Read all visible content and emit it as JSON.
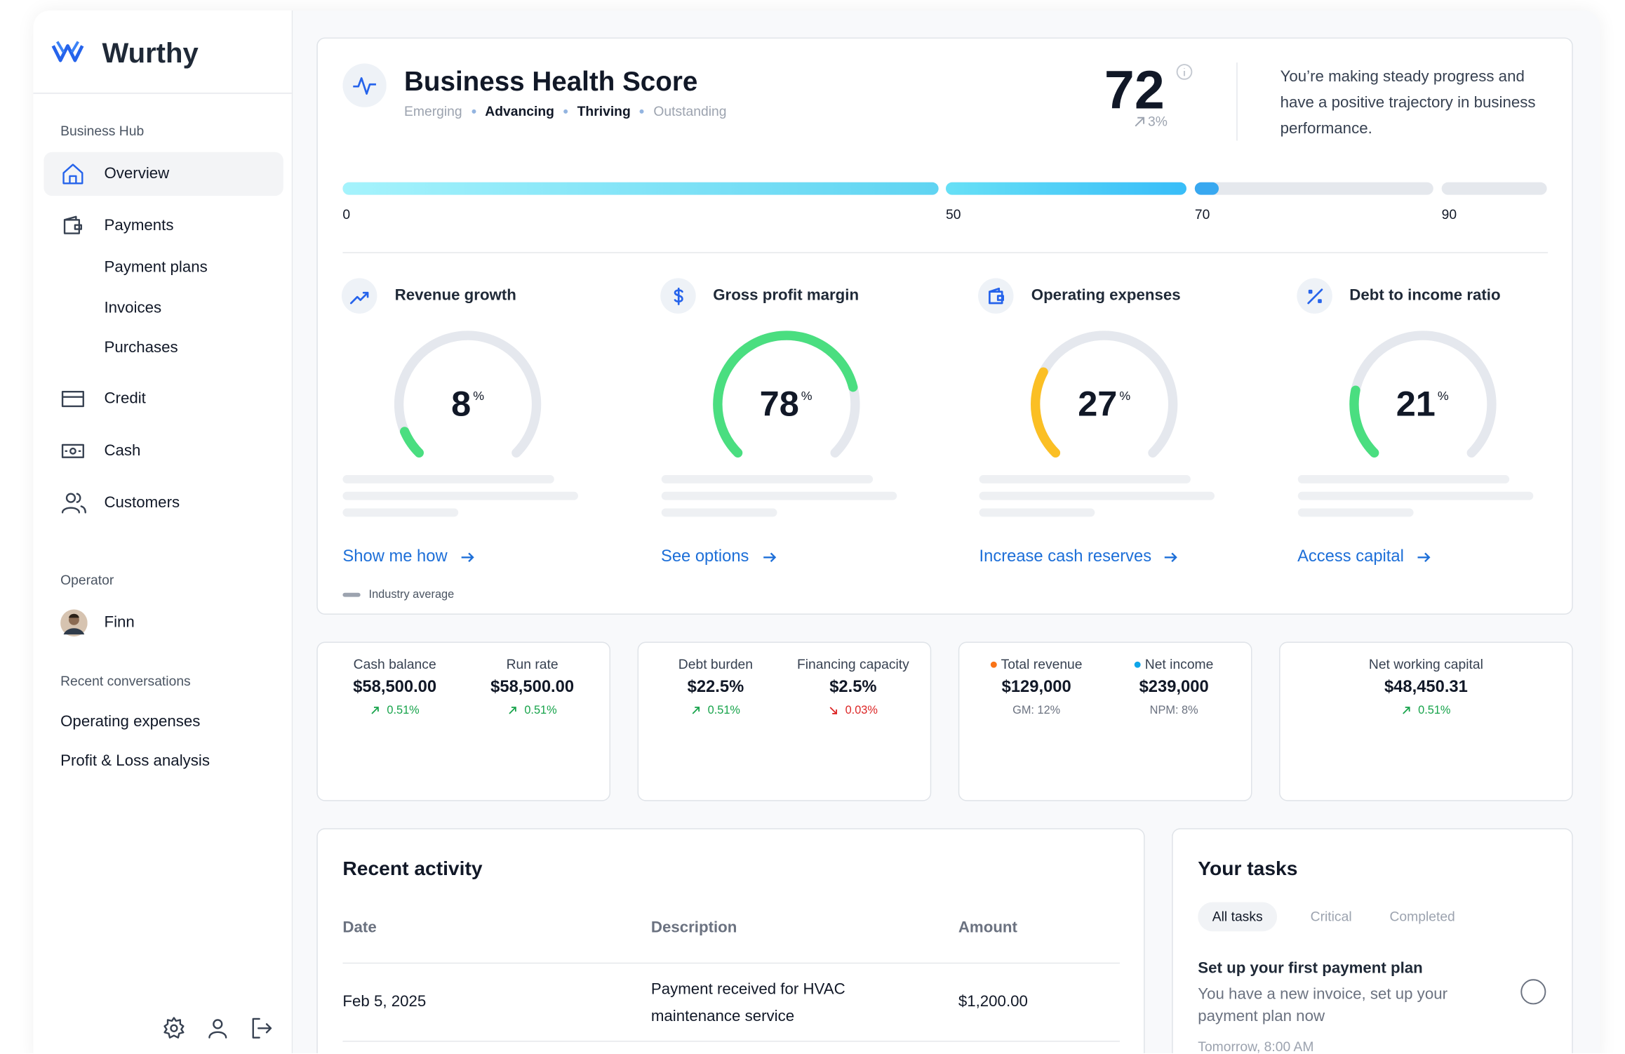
{
  "sidebar": {
    "brand": "Wurthy",
    "hub_title": "Business Hub",
    "nav": [
      "Overview",
      "Payments",
      "Payment plans",
      "Invoices",
      "Purchases",
      "Credit",
      "Cash",
      "Customers"
    ],
    "operator_title": "Operator",
    "operator": "Finn",
    "recent_title": "Recent conversations",
    "recent": [
      "Operating expenses",
      "Profit & Loss analysis"
    ]
  },
  "health": {
    "title": "Business Health Score",
    "levels": [
      {
        "name": "Emerging",
        "reached": false
      },
      {
        "name": "Advancing",
        "reached": true
      },
      {
        "name": "Thriving",
        "reached": true
      },
      {
        "name": "Outstanding",
        "reached": false
      }
    ],
    "score": 72,
    "change": "3%",
    "message": "You’re making steady progress and have a positive trajectory in business performance.",
    "scale": [
      0,
      50,
      70,
      90
    ],
    "metrics": [
      {
        "label": "Revenue growth",
        "value": 8,
        "unit": "%",
        "color": "#4ade80",
        "link": "Show me how"
      },
      {
        "label": "Gross profit margin",
        "value": 78,
        "unit": "%",
        "color": "#4ade80",
        "link": "See options"
      },
      {
        "label": "Operating expenses",
        "value": 27,
        "unit": "%",
        "color": "#fbbf24",
        "link": "Increase cash reserves"
      },
      {
        "label": "Debt to income ratio",
        "value": 21,
        "unit": "%",
        "color": "#4ade80",
        "link": "Access capital"
      }
    ],
    "legend": "Industry average"
  },
  "kpis": [
    {
      "items": [
        {
          "label": "Cash balance",
          "value": "$58,500.00",
          "change": "0.51%",
          "direction": "up"
        },
        {
          "label": "Run rate",
          "value": "$58,500.00",
          "change": "0.51%",
          "direction": "up"
        }
      ]
    },
    {
      "items": [
        {
          "label": "Debt burden",
          "value": "$22.5%",
          "change": "0.51%",
          "direction": "up"
        },
        {
          "label": "Financing capacity",
          "value": "$2.5%",
          "change": "0.03%",
          "direction": "down"
        }
      ]
    },
    {
      "items": [
        {
          "label": "Total revenue",
          "value": "$129,000",
          "sub": "GM: 12%",
          "dot": "#f97316"
        },
        {
          "label": "Net income",
          "value": "$239,000",
          "sub": "NPM: 8%",
          "dot": "#0ea5e9"
        }
      ]
    },
    {
      "items": [
        {
          "label": "Net working capital",
          "value": "$48,450.31",
          "change": "0.51%",
          "direction": "up"
        }
      ]
    }
  ],
  "activity": {
    "title": "Recent activity",
    "columns": [
      "Date",
      "Description",
      "Amount"
    ],
    "rows": [
      [
        "Feb 5, 2025",
        "Payment received for HVAC maintenance service",
        "$1,200.00"
      ]
    ]
  },
  "tasks": {
    "title": "Your tasks",
    "tabs": [
      "All tasks",
      "Critical",
      "Completed"
    ],
    "items": [
      {
        "title": "Set up your first payment plan",
        "text": "You have a new invoice, set up your payment plan now",
        "time": "Tomorrow, 8:00 AM"
      }
    ]
  }
}
